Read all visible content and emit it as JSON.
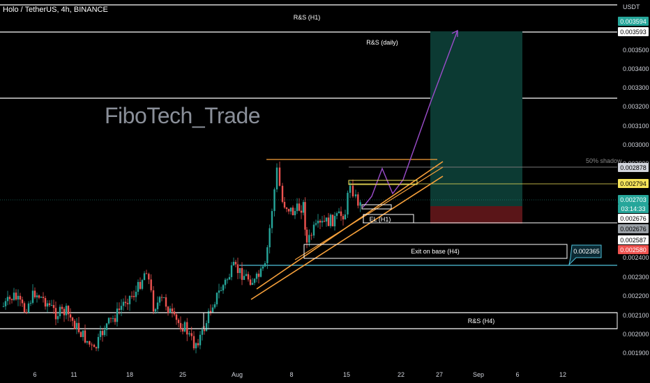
{
  "title": "Holo / TetherUS, 4h, BINANCE",
  "watermark": "FiboTech_Trade",
  "currency": "USDT",
  "colors": {
    "up": "#26a69a",
    "down": "#ef5350",
    "accent_orange": "#f7a13b",
    "accent_yellow": "#f5e45a",
    "purple": "#9c4dcc",
    "tp_zone": "#0c3a33",
    "sl_zone": "#5a1518",
    "cyan": "#4fc3dd"
  },
  "chart_data": {
    "type": "candlestick",
    "x_ticks": [
      "6",
      "11",
      "18",
      "25",
      "Aug",
      "8",
      "15",
      "22",
      "27",
      "Sep",
      "6",
      "12"
    ],
    "y_ticks": [
      "0.003500",
      "0.003400",
      "0.003300",
      "0.003200",
      "0.003100",
      "0.003000",
      "0.002900",
      "0.002400",
      "0.002300",
      "0.002200",
      "0.002100",
      "0.002000",
      "0.001900"
    ],
    "ylim": [
      0.00185,
      0.00368
    ],
    "price_labels": [
      {
        "text": "0.003594",
        "price": 0.003594,
        "bg": "#26a69a",
        "fg": "#ffffff"
      },
      {
        "text": "0.003593",
        "price": 0.003593,
        "bg": "#ffffff",
        "fg": "#000000"
      },
      {
        "text": "0.002878",
        "price": 0.002878,
        "bg": "#d1d4dc",
        "fg": "#000000"
      },
      {
        "text": "0.002794",
        "price": 0.002794,
        "bg": "#f5e45a",
        "fg": "#000000"
      },
      {
        "text": "0.002703",
        "price": 0.002703,
        "bg": "#26a69a",
        "fg": "#ffffff"
      },
      {
        "text": "03:14:33",
        "price": 0.002655,
        "bg": "#26a69a",
        "fg": "#ffffff"
      },
      {
        "text": "0.002676",
        "price": 0.002628,
        "bg": "#ffffff",
        "fg": "#000000"
      },
      {
        "text": "0.002676",
        "price": 0.002535,
        "bg": "#9aa0a6",
        "fg": "#000000"
      },
      {
        "text": "0.002587",
        "price": 0.002485,
        "bg": "#ffffff",
        "fg": "#000000"
      },
      {
        "text": "0.002580",
        "price": 0.002437,
        "bg": "#ef5350",
        "fg": "#ffffff"
      }
    ],
    "callout": "0.002365",
    "annotations": [
      "R&S (H1)",
      "R&S (daily)",
      "50% shadow",
      "EL (H1)",
      "Exit on base (H4)",
      "R&S (H4)"
    ]
  }
}
